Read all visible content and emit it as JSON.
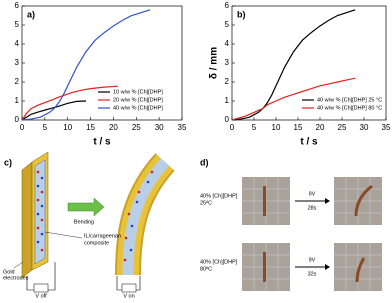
{
  "chart_data": [
    {
      "type": "line",
      "panel_label": "a)",
      "xlabel": "t / s",
      "xlim": [
        0,
        35
      ],
      "xticks": [
        0,
        5,
        10,
        15,
        20,
        25,
        30,
        35
      ],
      "ylim": [
        0,
        6
      ],
      "yticks": [
        0,
        1,
        2,
        3,
        4,
        5,
        6
      ],
      "legend": "lower right",
      "series": [
        {
          "name": "10 w/w % [Ch][DHP]",
          "color": "#000000",
          "x": [
            0,
            1,
            2,
            3.5,
            5,
            6.5,
            8,
            10,
            12,
            14
          ],
          "values": [
            0,
            0.15,
            0.3,
            0.42,
            0.52,
            0.62,
            0.72,
            0.88,
            0.98,
            1.0
          ]
        },
        {
          "name": "20 w/w % [Ch][DHP]",
          "color": "#e02020",
          "x": [
            0,
            1,
            2,
            3.5,
            5,
            6.5,
            8,
            11,
            13,
            15,
            18,
            21
          ],
          "values": [
            0,
            0.35,
            0.6,
            0.78,
            0.92,
            1.05,
            1.2,
            1.45,
            1.57,
            1.65,
            1.73,
            1.78
          ]
        },
        {
          "name": "40 w/w % [Ch][DHP]",
          "color": "#3050d0",
          "x": [
            0,
            2,
            4,
            6,
            7,
            8,
            9,
            10,
            11,
            12,
            13,
            14,
            16,
            18,
            20,
            22,
            24,
            26,
            28
          ],
          "values": [
            0,
            0.05,
            0.15,
            0.4,
            0.6,
            0.9,
            1.3,
            1.8,
            2.3,
            2.8,
            3.2,
            3.6,
            4.2,
            4.6,
            4.95,
            5.25,
            5.5,
            5.65,
            5.8
          ]
        }
      ]
    },
    {
      "type": "line",
      "panel_label": "b)",
      "xlabel": "t / s",
      "ylabel": "δ / mm",
      "xlim": [
        0,
        35
      ],
      "xticks": [
        0,
        5,
        10,
        15,
        20,
        25,
        30,
        35
      ],
      "ylim": [
        0,
        6
      ],
      "yticks": [
        0,
        1,
        2,
        3,
        4,
        5,
        6
      ],
      "legend": "lower right",
      "series": [
        {
          "name": "40 w/w % [Ch][DHP] 25 °C",
          "color": "#000000",
          "x": [
            0,
            2,
            4,
            6,
            7,
            8,
            9,
            10,
            11,
            12,
            13,
            14,
            16,
            18,
            20,
            22,
            24,
            26,
            28
          ],
          "values": [
            0,
            0.05,
            0.15,
            0.4,
            0.6,
            0.9,
            1.3,
            1.8,
            2.3,
            2.8,
            3.2,
            3.6,
            4.2,
            4.6,
            4.95,
            5.25,
            5.5,
            5.65,
            5.8
          ]
        },
        {
          "name": "40 w/w % [Ch][DHP] 80 °C",
          "color": "#e02020",
          "x": [
            0,
            3,
            5,
            7,
            8,
            10,
            12,
            14,
            16,
            18,
            20,
            22,
            24,
            26,
            28
          ],
          "values": [
            0,
            0.2,
            0.4,
            0.6,
            0.8,
            1.0,
            1.2,
            1.35,
            1.5,
            1.65,
            1.8,
            1.9,
            2.0,
            2.1,
            2.2
          ]
        }
      ]
    }
  ],
  "diagram": {
    "label": "c)",
    "arrow": "Bending",
    "composite": [
      "IL/carrageenan",
      "composite"
    ],
    "electrodes": [
      "Gold",
      "electrodes"
    ],
    "v_off": "V off",
    "v_on": "V on"
  },
  "photos": {
    "label": "d)",
    "rows": [
      {
        "condition": "40% [Ch][DHP]",
        "temperature": "25ºC",
        "voltage": "9V",
        "time": "28s"
      },
      {
        "condition": "40% [Ch][DHP]",
        "temperature": "80ºC",
        "voltage": "9V",
        "time": "32s"
      }
    ]
  }
}
